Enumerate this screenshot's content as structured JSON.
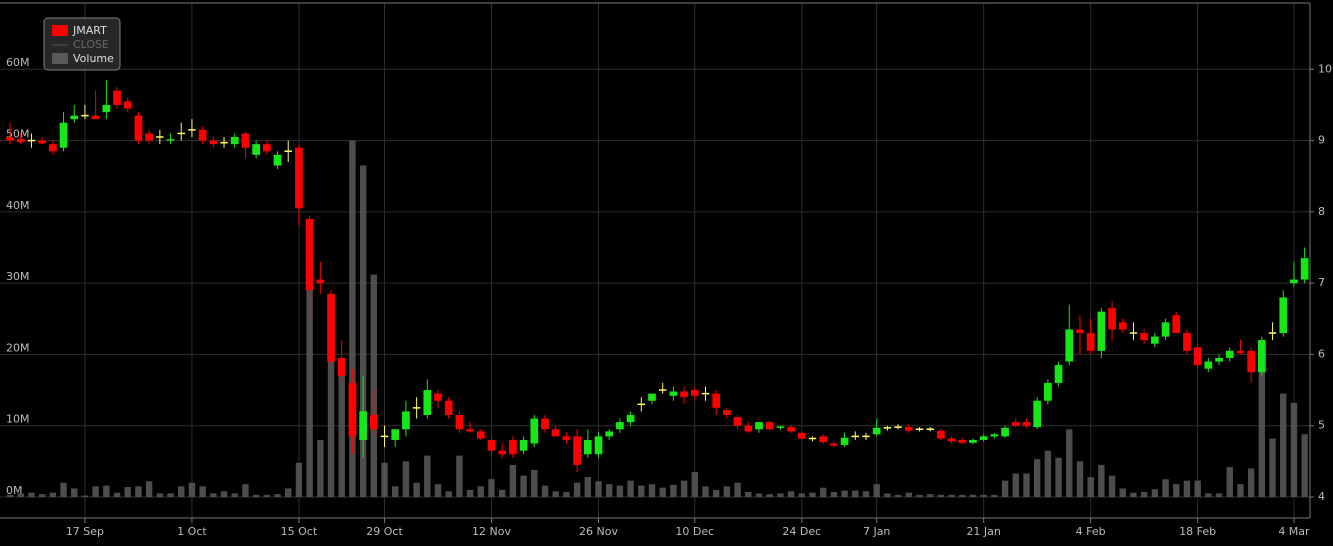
{
  "chart_data": {
    "type": "candlestick",
    "categories": [
      null,
      null,
      null,
      null,
      null,
      null,
      null,
      "17 Sep",
      null,
      null,
      null,
      null,
      null,
      null,
      null,
      null,
      null,
      "1 Oct",
      null,
      null,
      null,
      null,
      null,
      null,
      null,
      null,
      null,
      "15 Oct",
      null,
      null,
      null,
      null,
      null,
      null,
      null,
      "29 Oct",
      null,
      null,
      null,
      null,
      null,
      null,
      null,
      null,
      null,
      "12 Nov",
      null,
      null,
      null,
      null,
      null,
      null,
      null,
      null,
      null,
      "26 Nov",
      null,
      null,
      null,
      null,
      null,
      null,
      null,
      null,
      "10 Dec",
      null,
      null,
      null,
      null,
      null,
      null,
      null,
      null,
      null,
      "24 Dec",
      null,
      null,
      null,
      null,
      null,
      null,
      "7 Jan",
      null,
      null,
      null,
      null,
      null,
      null,
      null,
      null,
      null,
      "21 Jan",
      null,
      null,
      null,
      null,
      null,
      null,
      null,
      null,
      null,
      "4 Feb",
      null,
      null,
      null,
      null,
      null,
      null,
      null,
      null,
      null,
      "18 Feb",
      null,
      null,
      null,
      null,
      null,
      null,
      null,
      null,
      "4 Mar",
      null
    ],
    "series": [
      {
        "name": "JMART",
        "color": "#ff0000",
        "up_color": "#19e619",
        "down_color": "#ff0000",
        "doji_color": "#ffff66",
        "open": [
          9.05,
          9.02,
          9.0,
          9.0,
          8.95,
          8.9,
          9.3,
          9.35,
          9.35,
          9.4,
          9.7,
          9.55,
          9.35,
          9.1,
          9.05,
          9.0,
          9.1,
          9.15,
          9.15,
          9.0,
          8.97,
          8.95,
          9.1,
          8.8,
          8.95,
          8.65,
          8.85,
          8.9,
          7.9,
          7.05,
          6.85,
          5.95,
          5.6,
          4.8,
          5.15,
          4.85,
          4.8,
          4.95,
          5.25,
          5.15,
          5.45,
          5.35,
          5.15,
          4.95,
          4.92,
          4.8,
          4.65,
          4.8,
          4.65,
          4.75,
          5.1,
          4.95,
          4.85,
          4.85,
          4.6,
          4.6,
          4.85,
          4.95,
          5.05,
          5.3,
          5.35,
          5.5,
          5.42,
          5.48,
          5.5,
          5.45,
          5.45,
          5.22,
          5.12,
          5.0,
          4.95,
          5.05,
          4.97,
          4.98,
          4.9,
          4.82,
          4.85,
          4.75,
          4.73,
          4.85,
          4.85,
          4.88,
          4.97,
          4.98,
          4.98,
          4.95,
          4.95,
          4.93,
          4.82,
          4.8,
          4.76,
          4.8,
          4.85,
          4.85,
          5.05,
          5.05,
          4.98,
          5.35,
          5.6,
          5.9,
          6.35,
          6.3,
          6.05,
          6.65,
          6.45,
          6.3,
          6.3,
          6.15,
          6.25,
          6.55,
          6.3,
          6.1,
          5.8,
          5.9,
          5.95,
          6.05,
          6.05,
          5.75,
          6.3,
          6.3,
          7.0,
          7.05
        ],
        "high": [
          9.25,
          9.1,
          9.1,
          9.05,
          9.0,
          9.4,
          9.5,
          9.5,
          9.7,
          9.85,
          9.75,
          9.6,
          9.4,
          9.15,
          9.15,
          9.1,
          9.25,
          9.3,
          9.2,
          9.05,
          9.05,
          9.1,
          9.12,
          9.0,
          9.0,
          8.85,
          9.0,
          8.95,
          7.95,
          7.3,
          6.9,
          6.2,
          5.8,
          5.7,
          5.55,
          5.0,
          4.95,
          5.35,
          5.4,
          5.65,
          5.5,
          5.4,
          5.2,
          5.05,
          4.95,
          4.85,
          4.75,
          4.85,
          4.85,
          5.15,
          5.15,
          5.0,
          4.9,
          4.95,
          4.95,
          4.9,
          4.95,
          5.1,
          5.2,
          5.4,
          5.45,
          5.6,
          5.55,
          5.55,
          5.55,
          5.55,
          5.5,
          5.25,
          5.15,
          5.05,
          5.05,
          5.07,
          5.0,
          5.0,
          4.92,
          4.85,
          4.88,
          4.78,
          4.9,
          4.92,
          4.9,
          5.1,
          5.0,
          5.02,
          5.02,
          4.98,
          4.98,
          4.95,
          4.85,
          4.83,
          4.82,
          4.88,
          4.9,
          5.0,
          5.1,
          5.1,
          5.4,
          5.65,
          5.9,
          6.7,
          6.55,
          6.5,
          6.65,
          6.75,
          6.5,
          6.45,
          6.35,
          6.3,
          6.5,
          6.6,
          6.35,
          6.15,
          5.95,
          6.0,
          6.1,
          6.2,
          6.1,
          6.25,
          6.45,
          6.9,
          7.3,
          7.5
        ],
        "low": [
          8.95,
          8.95,
          8.9,
          8.95,
          8.8,
          8.85,
          9.25,
          9.3,
          9.3,
          9.3,
          9.45,
          9.4,
          8.95,
          8.95,
          8.95,
          8.95,
          9.0,
          9.05,
          8.95,
          8.9,
          8.9,
          8.9,
          8.75,
          8.75,
          8.8,
          8.6,
          8.7,
          7.8,
          6.5,
          6.85,
          5.85,
          5.6,
          4.6,
          4.55,
          4.85,
          4.7,
          4.7,
          4.85,
          5.1,
          5.1,
          5.25,
          5.1,
          4.9,
          4.9,
          4.8,
          4.6,
          4.55,
          4.55,
          4.6,
          4.7,
          4.9,
          4.85,
          4.75,
          4.35,
          4.55,
          4.55,
          4.8,
          4.9,
          5.0,
          5.2,
          5.3,
          5.45,
          5.35,
          5.3,
          5.35,
          5.35,
          5.15,
          5.1,
          4.95,
          4.9,
          4.9,
          4.93,
          4.94,
          4.9,
          4.8,
          4.78,
          4.75,
          4.7,
          4.7,
          4.8,
          4.8,
          4.85,
          4.93,
          4.95,
          4.9,
          4.92,
          4.92,
          4.8,
          4.75,
          4.74,
          4.74,
          4.78,
          4.82,
          4.83,
          4.98,
          4.97,
          4.95,
          5.3,
          5.55,
          5.85,
          6.0,
          6.0,
          5.95,
          6.2,
          6.3,
          6.2,
          6.15,
          6.1,
          6.2,
          6.3,
          6.0,
          5.8,
          5.75,
          5.85,
          5.9,
          6.0,
          5.6,
          5.7,
          6.2,
          6.25,
          6.95,
          7.0
        ],
        "close": [
          9.0,
          8.98,
          9.0,
          8.96,
          8.85,
          9.25,
          9.35,
          9.35,
          9.3,
          9.5,
          9.5,
          9.45,
          9.0,
          9.0,
          9.05,
          9.02,
          9.1,
          9.15,
          9.0,
          8.95,
          8.97,
          9.05,
          8.9,
          8.95,
          8.85,
          8.8,
          8.85,
          8.05,
          6.9,
          7.0,
          5.9,
          5.7,
          4.85,
          5.2,
          4.95,
          4.85,
          4.95,
          5.2,
          5.25,
          5.5,
          5.35,
          5.15,
          4.95,
          4.92,
          4.82,
          4.65,
          4.6,
          4.6,
          4.8,
          5.1,
          4.95,
          4.85,
          4.8,
          4.45,
          4.8,
          4.85,
          4.92,
          5.05,
          5.15,
          5.3,
          5.45,
          5.5,
          5.48,
          5.4,
          5.42,
          5.45,
          5.25,
          5.15,
          5.0,
          4.92,
          5.05,
          4.95,
          4.99,
          4.92,
          4.82,
          4.82,
          4.77,
          4.72,
          4.83,
          4.85,
          4.85,
          4.97,
          4.97,
          4.98,
          4.93,
          4.95,
          4.95,
          4.82,
          4.78,
          4.76,
          4.8,
          4.85,
          4.88,
          4.97,
          5.0,
          5.0,
          5.35,
          5.6,
          5.85,
          6.35,
          6.3,
          6.05,
          6.6,
          6.35,
          6.35,
          6.3,
          6.2,
          6.25,
          6.45,
          6.3,
          6.05,
          5.85,
          5.9,
          5.95,
          6.05,
          6.02,
          5.75,
          6.2,
          6.3,
          6.8,
          7.05,
          7.35
        ]
      },
      {
        "name": "CLOSE",
        "color": "#555555"
      },
      {
        "name": "Volume",
        "color": "#5a5a5a",
        "axis": "y2",
        "values": [
          0.3,
          0.5,
          0.6,
          0.4,
          0.6,
          2,
          1.2,
          0.2,
          1.5,
          1.6,
          0.6,
          1.4,
          1.5,
          2.2,
          0.5,
          0.5,
          1.5,
          2,
          1.5,
          0.5,
          0.8,
          0.5,
          1.8,
          0.3,
          0.3,
          0.4,
          1.2,
          4.8,
          31,
          8,
          26,
          19.5,
          50,
          46.5,
          31.2,
          4.8,
          1.5,
          5,
          2,
          5.8,
          1.8,
          0.8,
          5.8,
          1.0,
          1.5,
          2.5,
          1.0,
          4.5,
          3.0,
          3.8,
          1.6,
          0.8,
          0.7,
          2.0,
          2.8,
          2.2,
          1.8,
          1.6,
          2.3,
          1.6,
          1.8,
          1.3,
          1.7,
          2.3,
          3.5,
          1.5,
          1.0,
          1.5,
          2.0,
          0.7,
          0.5,
          0.4,
          0.5,
          0.8,
          0.5,
          0.6,
          1.3,
          0.7,
          0.9,
          0.9,
          0.8,
          1.8,
          0.5,
          0.3,
          0.6,
          0.3,
          0.4,
          0.3,
          0.3,
          0.3,
          0.3,
          0.3,
          0.3,
          2.3,
          3.3,
          3.3,
          5.3,
          6.5,
          5.5,
          9.5,
          5.0,
          2.8,
          4.5,
          3.0,
          1.2,
          0.6,
          0.7,
          1.1,
          2.5,
          1.8,
          2.3,
          2.3,
          0.5,
          0.5,
          4.2,
          1.8,
          4.0,
          22,
          8.2,
          14.5,
          13.2,
          8.8
        ]
      }
    ],
    "ylim": [
      3.705,
      10.93
    ],
    "yticks": [
      4,
      5,
      6,
      7,
      8,
      9,
      10
    ],
    "y2lim": [
      -2.945,
      69.28
    ],
    "y2ticks": [
      {
        "value": 0,
        "label": "0M"
      },
      {
        "value": 10,
        "label": "10M"
      },
      {
        "value": 20,
        "label": "20M"
      },
      {
        "value": 30,
        "label": "30M"
      },
      {
        "value": 40,
        "label": "40M"
      },
      {
        "value": 50,
        "label": "50M"
      },
      {
        "value": 60,
        "label": "60M"
      }
    ],
    "grid": true,
    "legend": "top-left"
  }
}
